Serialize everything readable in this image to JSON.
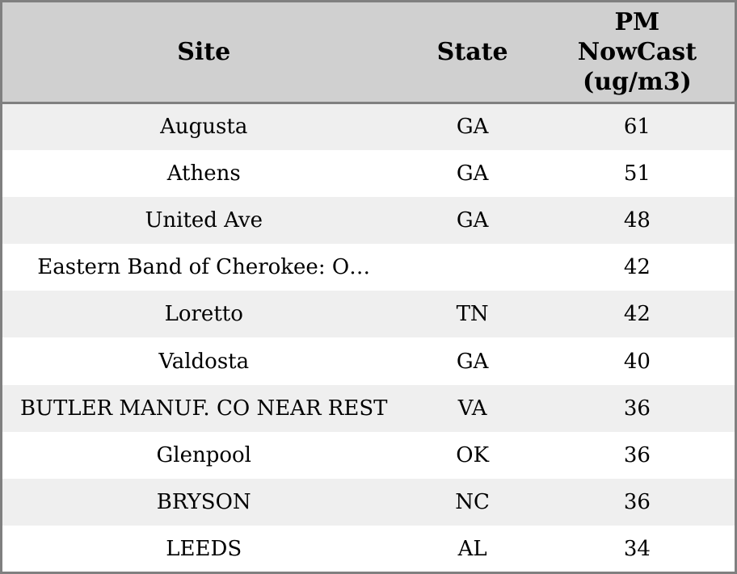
{
  "colors": {
    "header_bg": "#d0d0d0",
    "row_alt_bg": "#efefef",
    "row_bg": "#ffffff",
    "border": "#808080",
    "text": "#000000"
  },
  "table": {
    "columns": [
      {
        "label": "Site"
      },
      {
        "label": "State"
      },
      {
        "label": "PM\nNowCast\n(ug/m3)"
      }
    ],
    "rows": [
      {
        "site": "Augusta",
        "state": "GA",
        "pm": "61"
      },
      {
        "site": "Athens",
        "state": "GA",
        "pm": "51"
      },
      {
        "site": "United Ave",
        "state": "GA",
        "pm": "48"
      },
      {
        "site": "Eastern Band of Cherokee: O…",
        "state": "",
        "pm": "42"
      },
      {
        "site": "Loretto",
        "state": "TN",
        "pm": "42"
      },
      {
        "site": "Valdosta",
        "state": "GA",
        "pm": "40"
      },
      {
        "site": "BUTLER MANUF. CO NEAR REST",
        "state": "VA",
        "pm": "36"
      },
      {
        "site": "Glenpool",
        "state": "OK",
        "pm": "36"
      },
      {
        "site": "BRYSON",
        "state": "NC",
        "pm": "36"
      },
      {
        "site": "LEEDS",
        "state": "AL",
        "pm": "34"
      }
    ]
  }
}
